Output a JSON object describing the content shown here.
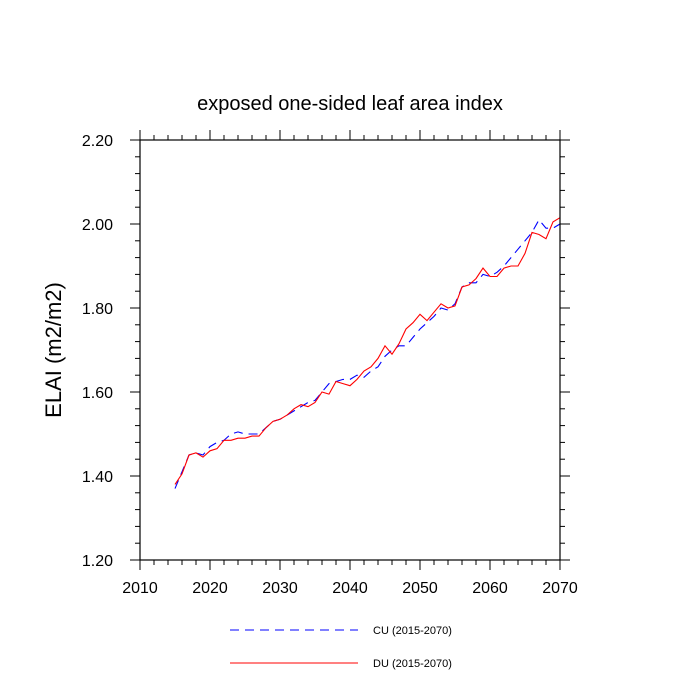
{
  "chart_data": {
    "type": "line",
    "title": "exposed one-sided leaf area index",
    "xlabel": "",
    "ylabel": "ELAI  (m2/m2)",
    "xlim": [
      2010,
      2070
    ],
    "ylim": [
      1.2,
      2.2
    ],
    "x_ticks": [
      2010,
      2020,
      2030,
      2040,
      2050,
      2060,
      2070
    ],
    "y_ticks": [
      1.2,
      1.4,
      1.6,
      1.8,
      2.0,
      2.2
    ],
    "x_tick_labels": [
      "2010",
      "2020",
      "2030",
      "2040",
      "2050",
      "2060",
      "2070"
    ],
    "y_tick_labels": [
      "1.20",
      "1.40",
      "1.60",
      "1.80",
      "2.00",
      "2.20"
    ],
    "grid": false,
    "legend_position": "bottom",
    "series": [
      {
        "name": "CU (2015-2070)",
        "color": "#0000ff",
        "style": "dashed",
        "x": [
          2015,
          2016,
          2017,
          2018,
          2019,
          2020,
          2021,
          2022,
          2023,
          2024,
          2025,
          2026,
          2027,
          2028,
          2029,
          2030,
          2031,
          2032,
          2033,
          2034,
          2035,
          2036,
          2037,
          2038,
          2039,
          2040,
          2041,
          2042,
          2043,
          2044,
          2045,
          2046,
          2047,
          2048,
          2049,
          2050,
          2051,
          2052,
          2053,
          2054,
          2055,
          2056,
          2057,
          2058,
          2059,
          2060,
          2061,
          2062,
          2063,
          2064,
          2065,
          2066,
          2067,
          2068,
          2069,
          2070
        ],
        "values": [
          1.37,
          1.41,
          1.45,
          1.455,
          1.45,
          1.47,
          1.48,
          1.485,
          1.5,
          1.505,
          1.5,
          1.5,
          1.5,
          1.515,
          1.53,
          1.535,
          1.545,
          1.555,
          1.565,
          1.575,
          1.58,
          1.6,
          1.62,
          1.625,
          1.63,
          1.63,
          1.64,
          1.635,
          1.65,
          1.66,
          1.685,
          1.7,
          1.71,
          1.71,
          1.73,
          1.75,
          1.765,
          1.78,
          1.8,
          1.795,
          1.81,
          1.85,
          1.86,
          1.86,
          1.88,
          1.875,
          1.885,
          1.9,
          1.92,
          1.94,
          1.96,
          1.98,
          2.01,
          1.99,
          1.99,
          2.0
        ]
      },
      {
        "name": "DU (2015-2070)",
        "color": "#ff0000",
        "style": "solid",
        "x": [
          2015,
          2016,
          2017,
          2018,
          2019,
          2020,
          2021,
          2022,
          2023,
          2024,
          2025,
          2026,
          2027,
          2028,
          2029,
          2030,
          2031,
          2032,
          2033,
          2034,
          2035,
          2036,
          2037,
          2038,
          2039,
          2040,
          2041,
          2042,
          2043,
          2044,
          2045,
          2046,
          2047,
          2048,
          2049,
          2050,
          2051,
          2052,
          2053,
          2054,
          2055,
          2056,
          2057,
          2058,
          2059,
          2060,
          2061,
          2062,
          2063,
          2064,
          2065,
          2066,
          2067,
          2068,
          2069,
          2070
        ],
        "values": [
          1.38,
          1.405,
          1.45,
          1.455,
          1.445,
          1.46,
          1.465,
          1.485,
          1.485,
          1.49,
          1.49,
          1.495,
          1.495,
          1.515,
          1.53,
          1.535,
          1.545,
          1.56,
          1.57,
          1.565,
          1.575,
          1.6,
          1.595,
          1.625,
          1.62,
          1.615,
          1.63,
          1.65,
          1.66,
          1.68,
          1.71,
          1.69,
          1.715,
          1.75,
          1.765,
          1.785,
          1.77,
          1.79,
          1.81,
          1.8,
          1.805,
          1.85,
          1.855,
          1.87,
          1.895,
          1.875,
          1.875,
          1.895,
          1.9,
          1.9,
          1.93,
          1.98,
          1.975,
          1.965,
          2.005,
          2.015
        ]
      }
    ]
  }
}
